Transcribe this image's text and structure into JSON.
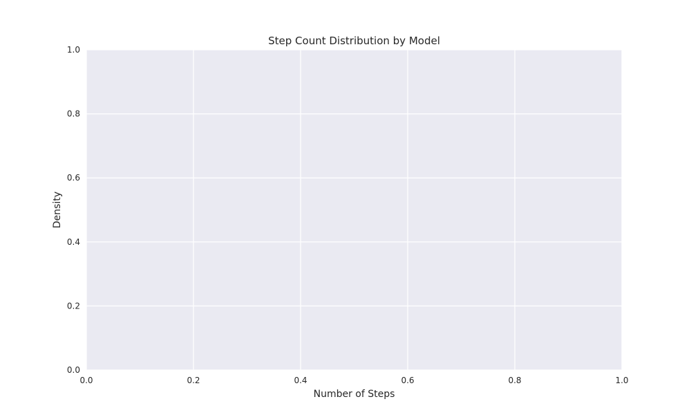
{
  "chart_data": {
    "type": "line",
    "title": "Step Count Distribution by Model",
    "xlabel": "Number of Steps",
    "ylabel": "Density",
    "xlim": [
      0.0,
      1.0
    ],
    "ylim": [
      0.0,
      1.0
    ],
    "x_ticks": [
      "0.0",
      "0.2",
      "0.4",
      "0.6",
      "0.8",
      "1.0"
    ],
    "y_ticks": [
      "0.0",
      "0.2",
      "0.4",
      "0.6",
      "0.8",
      "1.0"
    ],
    "grid": true,
    "legend": "none",
    "series": [],
    "colors": {
      "plot_background": "#eaeaf2",
      "grid": "#ffffff",
      "text": "#262626"
    }
  }
}
